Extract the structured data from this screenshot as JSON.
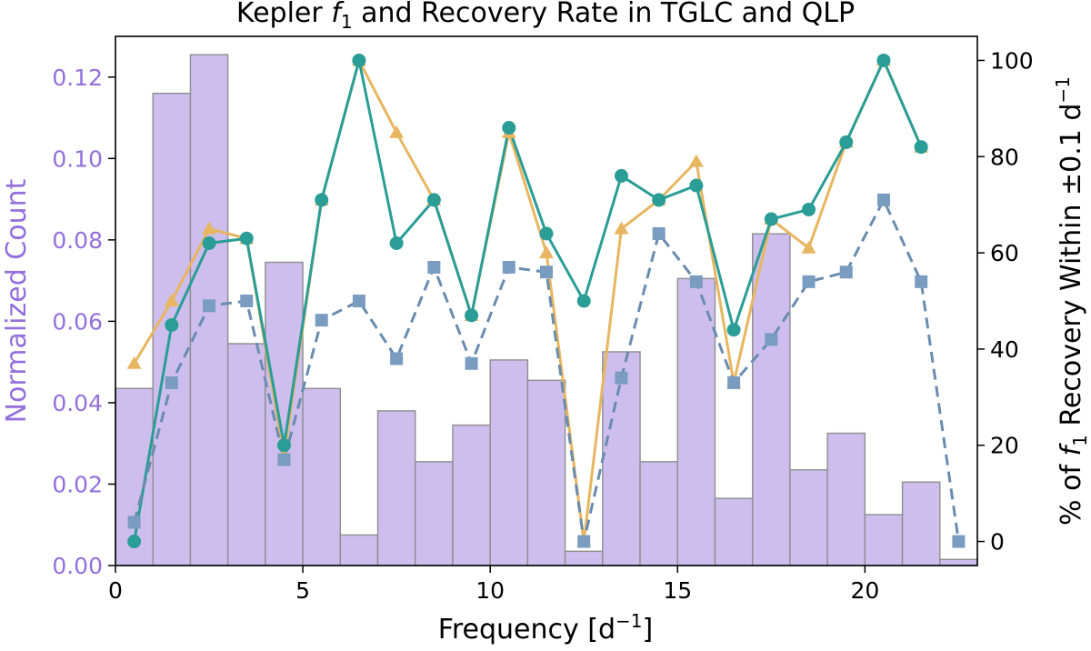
{
  "chart_data": {
    "type": "bar",
    "title": "Kepler f1 and Recovery Rate in TGLC and QLP",
    "title_parts": {
      "before": "Kepler ",
      "symbol": "f",
      "subscript": "1",
      "after": " and Recovery Rate in TGLC and QLP"
    },
    "xlabel": "Frequency [d⁻¹]",
    "xlabel_parts": {
      "text": "Frequency [d",
      "superscript": "−1",
      "close": "]"
    },
    "ylabel_left": "Normalized Count",
    "ylabel_right": "% of f1 Recovery Within ±0.1 d⁻¹",
    "ylabel_right_parts": {
      "before": "% of ",
      "symbol": "f",
      "subscript": "1",
      "middle": " Recovery Within ±0.1 d",
      "superscript": "−1"
    },
    "xlim": [
      0,
      23
    ],
    "ylim_left": [
      0,
      0.13
    ],
    "ylim_right": [
      -5,
      105
    ],
    "x_ticks": [
      0,
      5,
      10,
      15,
      20
    ],
    "y_ticks_left": [
      "0.00",
      "0.02",
      "0.04",
      "0.06",
      "0.08",
      "0.10",
      "0.12"
    ],
    "y_ticks_right": [
      0,
      20,
      40,
      60,
      80,
      100
    ],
    "histogram": {
      "name": "Normalized Count",
      "bin_edges": [
        0,
        1,
        2,
        3,
        4,
        5,
        6,
        7,
        8,
        9,
        10,
        11,
        12,
        13,
        14,
        15,
        16,
        17,
        18,
        19,
        20,
        21,
        22,
        23
      ],
      "values": [
        0.0435,
        0.116,
        0.1255,
        0.0545,
        0.0745,
        0.0435,
        0.0075,
        0.038,
        0.0255,
        0.0345,
        0.0505,
        0.0455,
        0.0035,
        0.0525,
        0.0255,
        0.0705,
        0.0165,
        0.0815,
        0.0235,
        0.0325,
        0.0125,
        0.0205,
        0.0015
      ]
    },
    "x": [
      0.5,
      1.5,
      2.5,
      3.5,
      4.5,
      5.5,
      6.5,
      7.5,
      8.5,
      9.5,
      10.5,
      11.5,
      12.5,
      13.5,
      14.5,
      15.5,
      16.5,
      17.5,
      18.5,
      19.5,
      20.5,
      21.5,
      22.5
    ],
    "series": [
      {
        "name": "orange triangles",
        "marker": "triangle",
        "style": "solid",
        "values": [
          37,
          50,
          65,
          63,
          18,
          71,
          100,
          85,
          71,
          47,
          85,
          60,
          0,
          65,
          71,
          79,
          33,
          67,
          61,
          83,
          100,
          82,
          null
        ]
      },
      {
        "name": "teal circles",
        "marker": "circle",
        "style": "solid",
        "values": [
          0,
          45,
          62,
          63,
          20,
          71,
          100,
          62,
          71,
          47,
          86,
          64,
          50,
          76,
          71,
          74,
          44,
          67,
          69,
          83,
          100,
          82,
          null
        ]
      },
      {
        "name": "blue squares",
        "marker": "square",
        "style": "dashed",
        "values": [
          4,
          33,
          49,
          50,
          17,
          46,
          50,
          38,
          57,
          37,
          57,
          56,
          0,
          34,
          64,
          54,
          33,
          42,
          54,
          56,
          71,
          54,
          0
        ]
      }
    ],
    "colors": {
      "histogram_fill": "#cdbeee",
      "histogram_edge": "#8e8e8e",
      "left_axis_text": "#9370db",
      "orange": "#e8b660",
      "teal": "#2a9d96",
      "blue": "#6a8cae",
      "blue_marker": "#7a9cc0"
    }
  }
}
